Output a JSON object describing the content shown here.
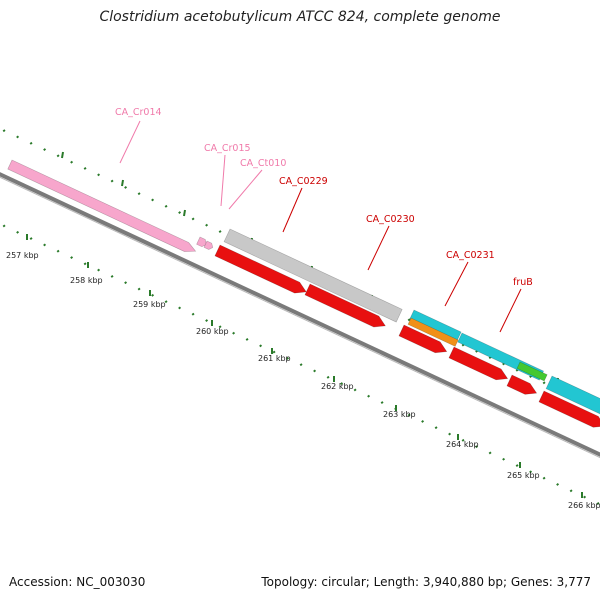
{
  "title": "Clostridium acetobutylicum ATCC 824, complete genome",
  "accession": "Accession: NC_003030",
  "topology": "Topology: circular; Length: 3,940,880 bp; Genes: 3,777",
  "colors": {
    "backbone": "#7a7a7a",
    "ticks": "#2a7a2a",
    "rna": "#f7a6cc",
    "gene_red": "#e81010",
    "gene_gray": "#c8c8c8",
    "gene_cyan": "#22c6d2",
    "gene_orange": "#f09018",
    "gene_green": "#44c830",
    "label_red": "#cc0000",
    "label_pink": "#f07aaa"
  },
  "ticks": [
    {
      "kbp": 257,
      "label": "257 kbp"
    },
    {
      "kbp": 258,
      "label": "258 kbp"
    },
    {
      "kbp": 259,
      "label": "259 kbp"
    },
    {
      "kbp": 260,
      "label": "260 kbp"
    },
    {
      "kbp": 261,
      "label": "261 kbp"
    },
    {
      "kbp": 262,
      "label": "262 kbp"
    },
    {
      "kbp": 263,
      "label": "263 kbp"
    },
    {
      "kbp": 264,
      "label": "264 kbp"
    },
    {
      "kbp": 265,
      "label": "265 kbp"
    },
    {
      "kbp": 266,
      "label": "266 kbp"
    }
  ],
  "labels": [
    {
      "text": "CA_Cr014",
      "color": "label_pink"
    },
    {
      "text": "CA_Cr015",
      "color": "label_pink"
    },
    {
      "text": "CA_Ct010",
      "color": "label_pink"
    },
    {
      "text": "CA_C0229",
      "color": "label_red"
    },
    {
      "text": "CA_C0230",
      "color": "label_red"
    },
    {
      "text": "CA_C0231",
      "color": "label_red"
    },
    {
      "text": "fruB",
      "color": "label_red"
    }
  ]
}
